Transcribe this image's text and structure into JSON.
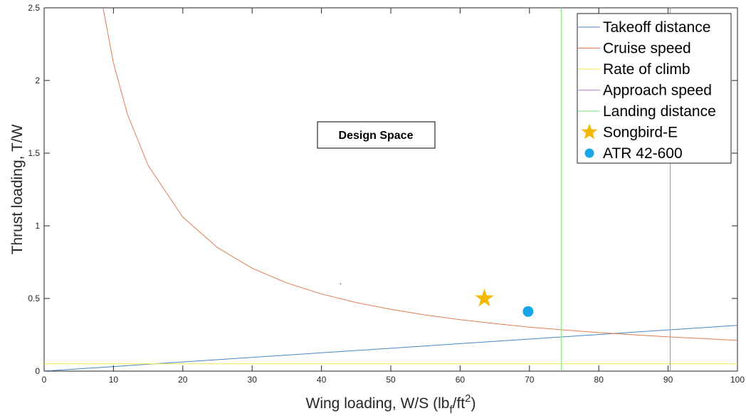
{
  "chart_data": {
    "type": "line",
    "xlabel": {
      "main": "Wing loading, W/S (lb",
      "sub": "f",
      "mid": "/ft",
      "sup": "2",
      "end": ")"
    },
    "ylabel": "Thrust loading, T/W",
    "xlim": [
      0,
      100
    ],
    "ylim": [
      0,
      2.5
    ],
    "xticks": [
      0,
      10,
      20,
      30,
      40,
      50,
      60,
      70,
      80,
      90,
      100
    ],
    "yticks": [
      0,
      0.5,
      1,
      1.5,
      2,
      2.5
    ],
    "ytick_labels": [
      "0",
      "0.5",
      "1",
      "1.5",
      "2",
      "2.5"
    ],
    "grid": false,
    "legend_position": "top-right",
    "annotation": "Design Space",
    "series": [
      {
        "name": "Takeoff distance",
        "kind": "line",
        "color": "#4a86c4",
        "x": [
          0,
          20,
          40,
          60,
          80,
          100
        ],
        "y": [
          0,
          0.063,
          0.126,
          0.189,
          0.252,
          0.315
        ]
      },
      {
        "name": "Cruise speed",
        "kind": "line",
        "color": "#e07b53",
        "x": [
          8.5,
          10,
          12,
          15,
          20,
          25,
          30,
          35,
          40,
          45,
          50,
          55,
          60,
          65,
          70,
          75,
          80,
          85,
          90,
          95,
          100
        ],
        "y": [
          2.5,
          2.12,
          1.77,
          1.415,
          1.06,
          0.85,
          0.708,
          0.607,
          0.531,
          0.472,
          0.425,
          0.386,
          0.354,
          0.327,
          0.303,
          0.283,
          0.265,
          0.25,
          0.236,
          0.224,
          0.212
        ]
      },
      {
        "name": "Rate of climb",
        "kind": "line",
        "color": "#f2e94e",
        "x": [
          0,
          100
        ],
        "y": [
          0.05,
          0.05
        ]
      },
      {
        "name": "Approach speed",
        "kind": "vline",
        "color": "#c77bd9",
        "x": [
          90.3,
          90.3
        ],
        "y": [
          0,
          2.5
        ]
      },
      {
        "name": "Landing distance",
        "kind": "vline",
        "color": "#7fe07f",
        "x": [
          74.6,
          74.6
        ],
        "y": [
          0,
          2.5
        ]
      },
      {
        "name": "Songbird-E",
        "kind": "star",
        "color": "#f5b800",
        "x": [
          63.5
        ],
        "y": [
          0.5
        ]
      },
      {
        "name": "ATR 42-600",
        "kind": "dot",
        "color": "#19a6e6",
        "x": [
          69.8
        ],
        "y": [
          0.41
        ]
      }
    ]
  }
}
